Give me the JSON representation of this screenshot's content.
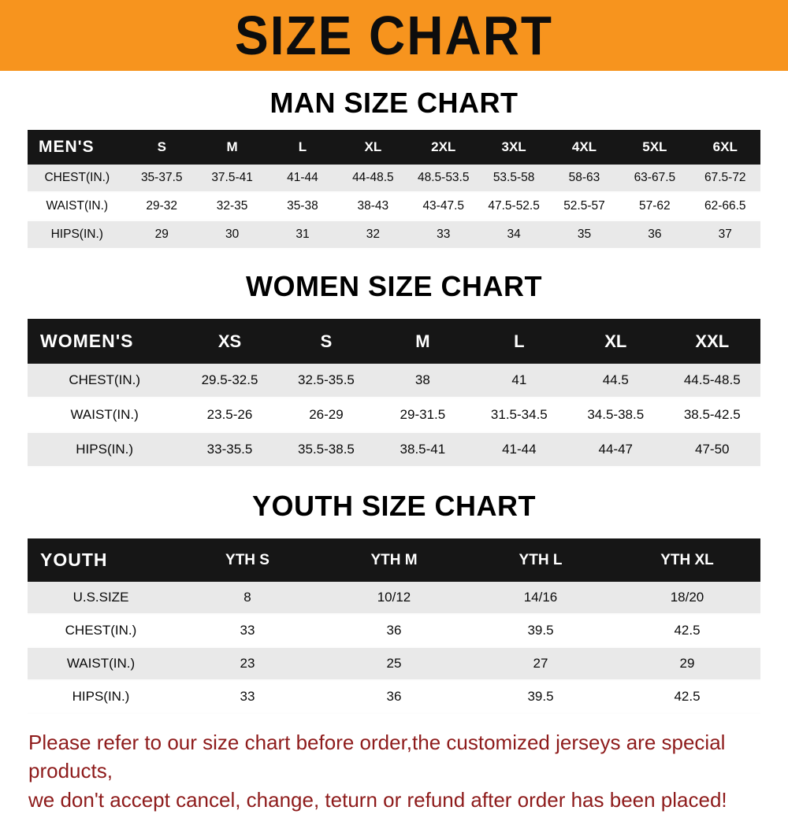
{
  "banner": {
    "title": "SIZE CHART"
  },
  "colors": {
    "banner_orange": "#f7941e",
    "header_black": "#161616",
    "row_gray": "#e9e9e9",
    "footer_red": "#8e1b1b"
  },
  "sections": [
    {
      "title": "MAN SIZE CHART",
      "header_label": "MEN'S",
      "columns": [
        "S",
        "M",
        "L",
        "XL",
        "2XL",
        "3XL",
        "4XL",
        "5XL",
        "6XL"
      ],
      "rows": [
        {
          "label": "CHEST(IN.)",
          "values": [
            "35-37.5",
            "37.5-41",
            "41-44",
            "44-48.5",
            "48.5-53.5",
            "53.5-58",
            "58-63",
            "63-67.5",
            "67.5-72"
          ]
        },
        {
          "label": "WAIST(IN.)",
          "values": [
            "29-32",
            "32-35",
            "35-38",
            "38-43",
            "43-47.5",
            "47.5-52.5",
            "52.5-57",
            "57-62",
            "62-66.5"
          ]
        },
        {
          "label": "HIPS(IN.)",
          "values": [
            "29",
            "30",
            "31",
            "32",
            "33",
            "34",
            "35",
            "36",
            "37"
          ]
        }
      ]
    },
    {
      "title": "WOMEN SIZE CHART",
      "header_label": "WOMEN'S",
      "columns": [
        "XS",
        "S",
        "M",
        "L",
        "XL",
        "XXL"
      ],
      "rows": [
        {
          "label": "CHEST(IN.)",
          "values": [
            "29.5-32.5",
            "32.5-35.5",
            "38",
            "41",
            "44.5",
            "44.5-48.5"
          ]
        },
        {
          "label": "WAIST(IN.)",
          "values": [
            "23.5-26",
            "26-29",
            "29-31.5",
            "31.5-34.5",
            "34.5-38.5",
            "38.5-42.5"
          ]
        },
        {
          "label": "HIPS(IN.)",
          "values": [
            "33-35.5",
            "35.5-38.5",
            "38.5-41",
            "41-44",
            "44-47",
            "47-50"
          ]
        }
      ]
    },
    {
      "title": "YOUTH SIZE CHART",
      "header_label": "YOUTH",
      "columns": [
        "YTH S",
        "YTH M",
        "YTH L",
        "YTH XL"
      ],
      "rows": [
        {
          "label": "U.S.SIZE",
          "values": [
            "8",
            "10/12",
            "14/16",
            "18/20"
          ]
        },
        {
          "label": "CHEST(IN.)",
          "values": [
            "33",
            "36",
            "39.5",
            "42.5"
          ]
        },
        {
          "label": "WAIST(IN.)",
          "values": [
            "23",
            "25",
            "27",
            "29"
          ]
        },
        {
          "label": "HIPS(IN.)",
          "values": [
            "33",
            "36",
            "39.5",
            "42.5"
          ]
        }
      ]
    }
  ],
  "footer": {
    "lines": [
      "Please refer to our size chart before order,the customized jerseys are special products,",
      "we don't accept cancel, change, teturn or refund after order has been placed!"
    ]
  }
}
